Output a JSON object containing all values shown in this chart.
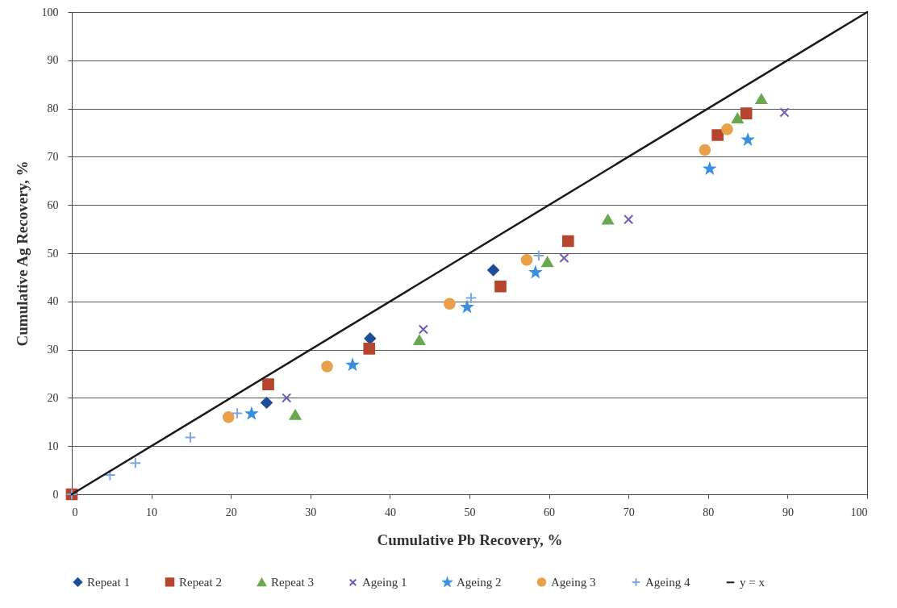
{
  "chart_data": {
    "type": "scatter",
    "xlabel": "Cumulative Pb Recovery, %",
    "ylabel": "Cumulative Ag Recovery, %",
    "xlim": [
      0,
      100
    ],
    "ylim": [
      0,
      100
    ],
    "xticks": [
      0,
      10,
      20,
      30,
      40,
      50,
      60,
      70,
      80,
      90,
      100
    ],
    "yticks": [
      0,
      10,
      20,
      30,
      40,
      50,
      60,
      70,
      80,
      90,
      100
    ],
    "grid": "y",
    "legend": "bottom",
    "series": [
      {
        "name": "Repeat 1",
        "color": "#1f4e99",
        "marker": "diamond",
        "x": [
          24.5,
          37.5,
          53
        ],
        "values": [
          19,
          32.3,
          46.5
        ]
      },
      {
        "name": "Repeat 2",
        "color": "#b5452e",
        "marker": "square",
        "x": [
          0,
          24.7,
          37.4,
          53.9,
          62.4,
          81.2,
          84.8
        ],
        "values": [
          0,
          22.8,
          30.2,
          43.1,
          52.5,
          74.5,
          79
        ]
      },
      {
        "name": "Repeat 3",
        "color": "#6aa84f",
        "marker": "triangle",
        "x": [
          28.1,
          43.7,
          59.8,
          67.4,
          83.7,
          86.7
        ],
        "values": [
          16.5,
          32,
          48.2,
          57,
          78,
          82
        ]
      },
      {
        "name": "Ageing 1",
        "color": "#6a5fb0",
        "marker": "x",
        "x": [
          27,
          44.2,
          61.9,
          70,
          89.6
        ],
        "values": [
          20,
          34.2,
          49,
          57,
          79.2
        ]
      },
      {
        "name": "Ageing 2",
        "color": "#3b8fe0",
        "marker": "star",
        "x": [
          22.6,
          35.3,
          49.7,
          58.3,
          80.2,
          85
        ],
        "values": [
          16.7,
          26.8,
          38.8,
          46,
          67.5,
          73.5
        ]
      },
      {
        "name": "Ageing 3",
        "color": "#e8a04a",
        "marker": "circle",
        "x": [
          19.7,
          32.1,
          47.5,
          57.2,
          79.6,
          82.4
        ],
        "values": [
          16,
          26.5,
          39.5,
          48.6,
          71.4,
          75.7
        ]
      },
      {
        "name": "Ageing 4",
        "color": "#7ea6e0",
        "marker": "cross",
        "x": [
          0,
          4.8,
          8,
          14.9,
          20.8,
          50.2,
          58.7
        ],
        "values": [
          0,
          4,
          6.5,
          11.8,
          16.8,
          40.7,
          49.5
        ]
      },
      {
        "name": "y = x",
        "type": "line",
        "color": "#1a1a1a",
        "marker": "none",
        "x": [
          0,
          100
        ],
        "values": [
          0,
          100
        ]
      }
    ]
  }
}
